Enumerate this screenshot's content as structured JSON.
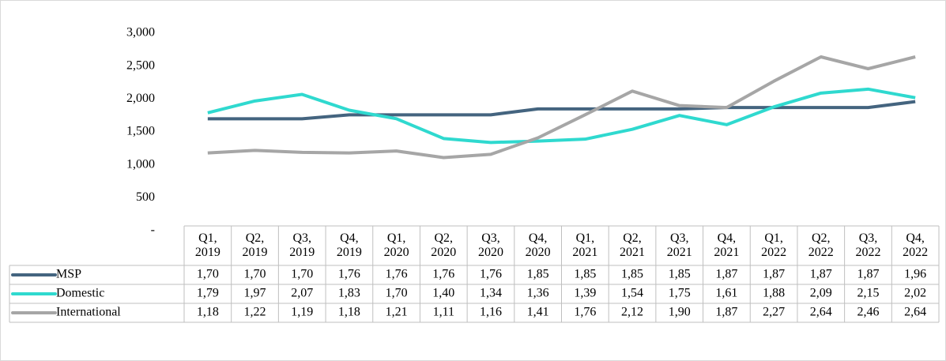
{
  "chart_data": {
    "type": "line",
    "categories": [
      "Q1, 2019",
      "Q2, 2019",
      "Q3, 2019",
      "Q4, 2019",
      "Q1, 2020",
      "Q2, 2020",
      "Q3, 2020",
      "Q4, 2020",
      "Q1, 2021",
      "Q2, 2021",
      "Q3, 2021",
      "Q4, 2021",
      "Q1, 2022",
      "Q2, 2022",
      "Q3, 2022",
      "Q4, 2022"
    ],
    "series": [
      {
        "name": "MSP",
        "color": "#44647f",
        "values": [
          1700,
          1700,
          1700,
          1760,
          1760,
          1760,
          1760,
          1850,
          1850,
          1850,
          1850,
          1870,
          1870,
          1870,
          1870,
          1960
        ],
        "value_labels": [
          "1,70",
          "1,70",
          "1,70",
          "1,76",
          "1,76",
          "1,76",
          "1,76",
          "1,85",
          "1,85",
          "1,85",
          "1,85",
          "1,87",
          "1,87",
          "1,87",
          "1,87",
          "1,96"
        ]
      },
      {
        "name": "Domestic",
        "color": "#2fd9cf",
        "values": [
          1790,
          1970,
          2070,
          1830,
          1700,
          1400,
          1340,
          1360,
          1390,
          1540,
          1750,
          1610,
          1880,
          2090,
          2150,
          2020
        ],
        "value_labels": [
          "1,79",
          "1,97",
          "2,07",
          "1,83",
          "1,70",
          "1,40",
          "1,34",
          "1,36",
          "1,39",
          "1,54",
          "1,75",
          "1,61",
          "1,88",
          "2,09",
          "2,15",
          "2,02"
        ]
      },
      {
        "name": "International",
        "color": "#a6a6a6",
        "values": [
          1180,
          1220,
          1190,
          1180,
          1210,
          1110,
          1160,
          1410,
          1760,
          2120,
          1900,
          1870,
          2270,
          2640,
          2460,
          2640
        ],
        "value_labels": [
          "1,18",
          "1,22",
          "1,19",
          "1,18",
          "1,21",
          "1,11",
          "1,16",
          "1,41",
          "1,76",
          "2,12",
          "1,90",
          "1,87",
          "2,27",
          "2,64",
          "2,46",
          "2,64"
        ]
      }
    ],
    "ylim": [
      0,
      3000
    ],
    "yticks": [
      {
        "value": 0,
        "label": "-"
      },
      500,
      {
        "value": 1000,
        "label": "1,000"
      },
      {
        "value": 1500,
        "label": "1,500"
      },
      {
        "value": 2000,
        "label": "2,000"
      },
      {
        "value": 2500,
        "label": "2,500"
      },
      {
        "value": 3000,
        "label": "3,000"
      }
    ],
    "grid": false
  }
}
